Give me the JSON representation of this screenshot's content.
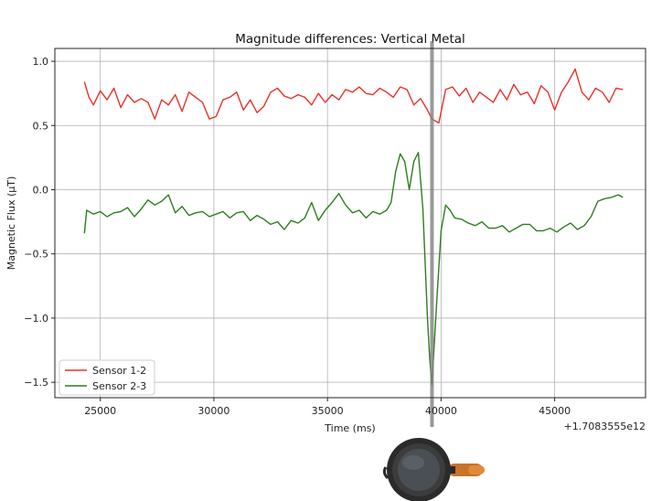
{
  "chart_data": {
    "type": "line",
    "title": "Magnitude differences: Vertical Metal",
    "xlabel": "Time (ms)",
    "ylabel": "Magnetic Flux (µT)",
    "x_offset_label": "+1.7083555e12",
    "xlim": [
      23000,
      49000
    ],
    "ylim": [
      -1.62,
      1.1
    ],
    "x_ticks": [
      25000,
      30000,
      35000,
      40000,
      45000
    ],
    "x_tick_labels": [
      "25000",
      "30000",
      "35000",
      "40000",
      "45000"
    ],
    "y_ticks": [
      1.0,
      0.5,
      0.0,
      -0.5,
      -1.0,
      -1.5
    ],
    "y_tick_labels": [
      "1.0",
      "0.5",
      "0.0",
      "−0.5",
      "−1.0",
      "−1.5"
    ],
    "grid": true,
    "legend_position": "bottom-left",
    "marker_line_x": 39600,
    "series": [
      {
        "name": "Sensor 1-2",
        "color": "#e8312a",
        "x": [
          24300,
          24500,
          24700,
          25000,
          25300,
          25600,
          25900,
          26200,
          26500,
          26800,
          27100,
          27400,
          27700,
          28000,
          28300,
          28600,
          28900,
          29200,
          29500,
          29800,
          30100,
          30400,
          30700,
          31000,
          31300,
          31600,
          31900,
          32200,
          32500,
          32800,
          33100,
          33400,
          33700,
          34000,
          34300,
          34600,
          34900,
          35200,
          35500,
          35800,
          36100,
          36400,
          36700,
          37000,
          37300,
          37600,
          37900,
          38200,
          38500,
          38800,
          39100,
          39400,
          39600,
          39900,
          40200,
          40500,
          40800,
          41100,
          41400,
          41700,
          42000,
          42300,
          42600,
          42900,
          43200,
          43500,
          43800,
          44100,
          44400,
          44700,
          45000,
          45300,
          45600,
          45900,
          46200,
          46500,
          46800,
          47100,
          47400,
          47700,
          48000
        ],
        "y": [
          0.84,
          0.72,
          0.66,
          0.77,
          0.7,
          0.79,
          0.64,
          0.74,
          0.68,
          0.71,
          0.68,
          0.55,
          0.7,
          0.66,
          0.74,
          0.61,
          0.76,
          0.72,
          0.68,
          0.55,
          0.57,
          0.7,
          0.72,
          0.76,
          0.62,
          0.7,
          0.6,
          0.65,
          0.76,
          0.79,
          0.73,
          0.71,
          0.74,
          0.72,
          0.66,
          0.75,
          0.68,
          0.74,
          0.7,
          0.78,
          0.76,
          0.8,
          0.75,
          0.74,
          0.79,
          0.76,
          0.72,
          0.8,
          0.78,
          0.66,
          0.71,
          0.62,
          0.55,
          0.52,
          0.78,
          0.8,
          0.73,
          0.79,
          0.68,
          0.76,
          0.72,
          0.68,
          0.78,
          0.7,
          0.82,
          0.74,
          0.76,
          0.67,
          0.81,
          0.76,
          0.62,
          0.76,
          0.84,
          0.94,
          0.76,
          0.7,
          0.79,
          0.76,
          0.68,
          0.79,
          0.78
        ]
      },
      {
        "name": "Sensor 2-3",
        "color": "#2e7d1f",
        "x": [
          24300,
          24400,
          24700,
          25000,
          25300,
          25600,
          25900,
          26200,
          26500,
          26800,
          27100,
          27400,
          27700,
          28000,
          28300,
          28600,
          28900,
          29200,
          29500,
          29800,
          30100,
          30400,
          30700,
          31000,
          31300,
          31600,
          31900,
          32200,
          32500,
          32800,
          33100,
          33400,
          33700,
          34000,
          34300,
          34600,
          34900,
          35200,
          35500,
          35800,
          36100,
          36400,
          36700,
          37000,
          37300,
          37600,
          37800,
          38000,
          38200,
          38400,
          38600,
          38800,
          39000,
          39200,
          39400,
          39500,
          39600,
          39800,
          40000,
          40200,
          40400,
          40600,
          40900,
          41200,
          41500,
          41800,
          42100,
          42400,
          42700,
          43000,
          43300,
          43600,
          43900,
          44200,
          44500,
          44800,
          45100,
          45400,
          45700,
          46000,
          46300,
          46600,
          46900,
          47200,
          47500,
          47800,
          48000
        ],
        "y": [
          -0.34,
          -0.16,
          -0.19,
          -0.17,
          -0.21,
          -0.18,
          -0.17,
          -0.14,
          -0.21,
          -0.15,
          -0.08,
          -0.12,
          -0.09,
          -0.04,
          -0.18,
          -0.13,
          -0.2,
          -0.18,
          -0.17,
          -0.21,
          -0.19,
          -0.17,
          -0.22,
          -0.18,
          -0.17,
          -0.24,
          -0.2,
          -0.23,
          -0.27,
          -0.25,
          -0.31,
          -0.24,
          -0.26,
          -0.22,
          -0.1,
          -0.24,
          -0.16,
          -0.1,
          -0.03,
          -0.12,
          -0.18,
          -0.16,
          -0.22,
          -0.17,
          -0.19,
          -0.16,
          -0.1,
          0.14,
          0.28,
          0.22,
          0.0,
          0.22,
          0.29,
          -0.15,
          -1.0,
          -1.32,
          -1.52,
          -0.9,
          -0.32,
          -0.12,
          -0.16,
          -0.22,
          -0.23,
          -0.26,
          -0.28,
          -0.25,
          -0.3,
          -0.3,
          -0.28,
          -0.33,
          -0.3,
          -0.27,
          -0.27,
          -0.32,
          -0.32,
          -0.3,
          -0.33,
          -0.29,
          -0.26,
          -0.31,
          -0.28,
          -0.21,
          -0.09,
          -0.07,
          -0.06,
          -0.04,
          -0.06
        ]
      }
    ]
  },
  "image": {
    "icon": "frying-pan-icon"
  }
}
